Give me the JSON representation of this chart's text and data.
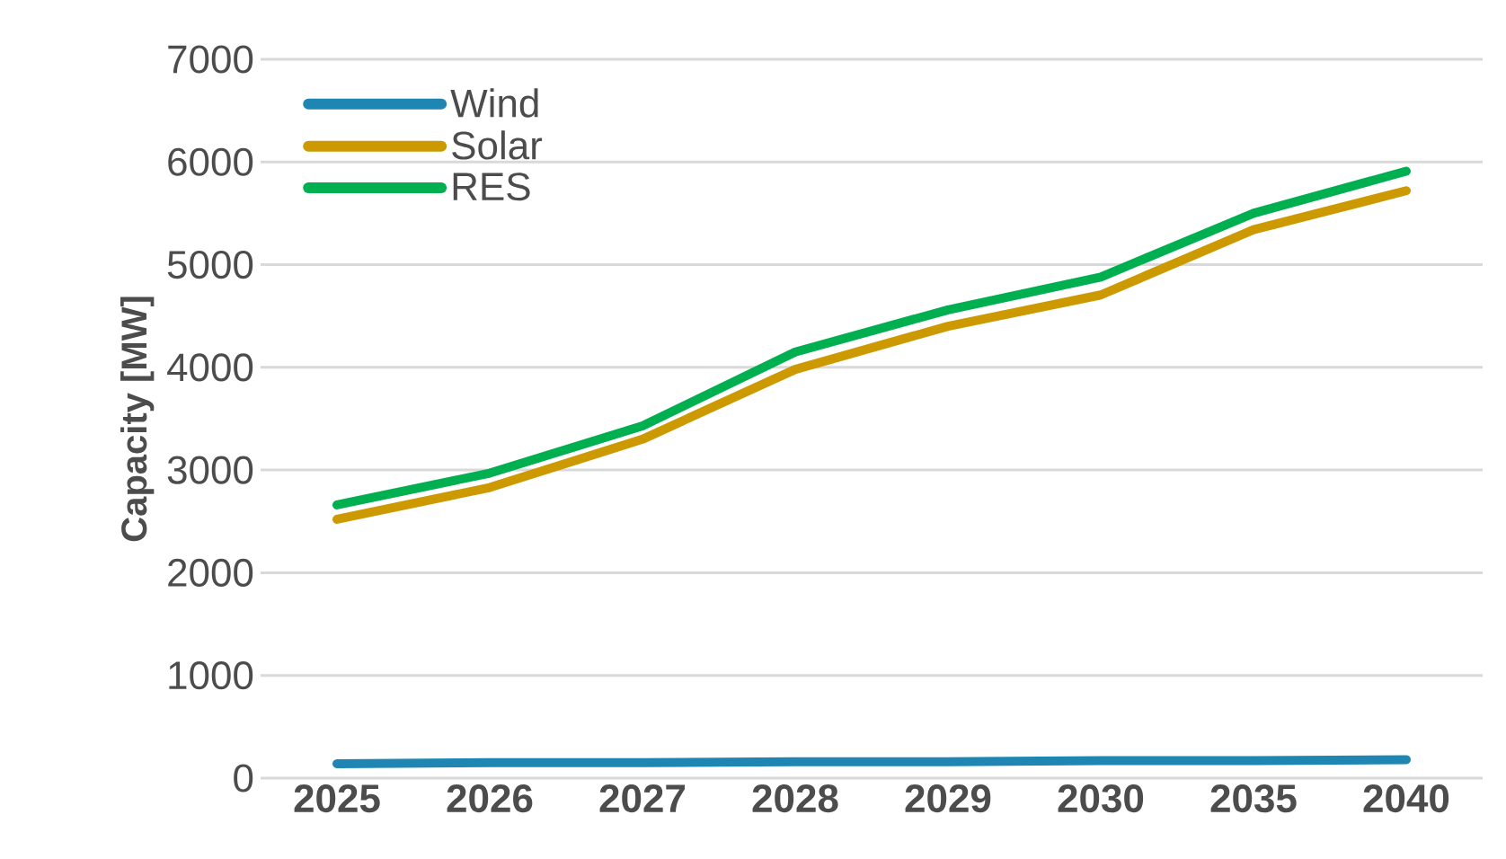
{
  "chart_data": {
    "type": "line",
    "ylabel": "Capacity [MW]",
    "categories": [
      "2025",
      "2026",
      "2027",
      "2028",
      "2029",
      "2030",
      "2035",
      "2040"
    ],
    "series": [
      {
        "name": "Wind",
        "color": "#1f86b4",
        "values": [
          140,
          150,
          150,
          160,
          160,
          170,
          170,
          180
        ]
      },
      {
        "name": "Solar",
        "color": "#cc9a00",
        "values": [
          2520,
          2830,
          3300,
          3980,
          4400,
          4705,
          5340,
          5720
        ]
      },
      {
        "name": "RES",
        "color": "#00b050",
        "values": [
          2660,
          2970,
          3430,
          4150,
          4560,
          4880,
          5500,
          5910
        ]
      }
    ],
    "ylim": [
      0,
      7000
    ],
    "yticks": [
      0,
      1000,
      2000,
      3000,
      4000,
      5000,
      6000,
      7000
    ],
    "grid": "y",
    "legend": "top left",
    "marker": "none",
    "line_style": "solid"
  }
}
